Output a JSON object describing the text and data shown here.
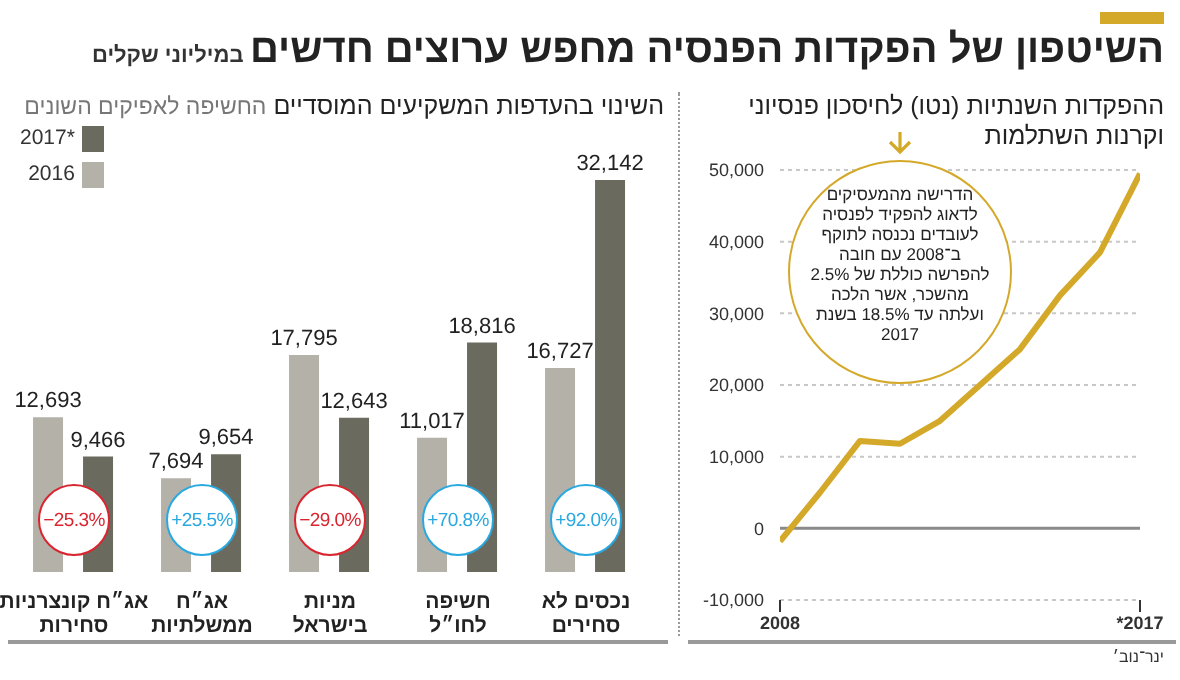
{
  "chart_data": [
    {
      "type": "line",
      "title": "השיטפון של הפקדות הפנסיה מחפש ערוצים חדשים",
      "subtitle": "ההפקדות השנתיות (נטו) לחיסכון פנסיוני וקרנות השתלמות",
      "annotations": [
        "הדרישה מהמעסיקים לדאוג להפקיד לפנסיה לעובדים נכנסה לתוקף ב־2008 עם חובה להפרשה כוללת של 2.5% מהשכר, אשר הלכה ועלתה עד 18.5% בשנת 2017",
        "ינר־נוב׳"
      ],
      "x": [
        2008,
        2009,
        2010,
        2011,
        2012,
        2013,
        2014,
        2015,
        2016,
        2017
      ],
      "series": [
        {
          "color": "#d4a92a",
          "values": [
            -1800,
            5000,
            12200,
            11800,
            15000,
            20000,
            25000,
            32500,
            38500,
            49500
          ]
        }
      ],
      "xlim": [
        2008,
        2017
      ],
      "xticks": [
        {
          "value": 2008,
          "label": "2008"
        },
        {
          "value": 2017,
          "label": "*2017"
        }
      ],
      "ylim": [
        -10000,
        50000
      ],
      "yticks": [
        {
          "value": -10000,
          "label": "-10,000"
        },
        0,
        {
          "value": 10000,
          "label": "10,000"
        },
        {
          "value": 20000,
          "label": "20,000"
        },
        {
          "value": 30000,
          "label": "30,000"
        },
        {
          "value": 40000,
          "label": "40,000"
        },
        {
          "value": 50000,
          "label": "50,000"
        }
      ],
      "grid": "y",
      "ref_lines": [
        {
          "axis": "y",
          "value": 0,
          "color": "#8a8a8a"
        }
      ]
    },
    {
      "type": "bar",
      "title": "השינוי בהעדפות המשקיעים המוסדיים",
      "subtitle": "החשיפה לאפיקים השונים",
      "categories": [
        "אג״ח קונצרניות סחירות",
        "אג״ח ממשלתיות",
        "מניות בישראל",
        "חשיפה לחו״ל",
        "נכסים לא סחירים"
      ],
      "series": [
        {
          "name": "2016",
          "color": "#b3b1a8",
          "values": [
            12693,
            7694,
            17795,
            11017,
            16727
          ],
          "value_labels": [
            "12,693",
            "7,694",
            "17,795",
            "11,017",
            "16,727"
          ]
        },
        {
          "name": "2017*",
          "color": "#6b6a5e",
          "values": [
            9466,
            9654,
            12643,
            18816,
            32142
          ],
          "value_labels": [
            "9,466",
            "9,654",
            "12,643",
            "18,816",
            "32,142"
          ]
        }
      ],
      "annotations": [
        "במיליוני שקלים",
        {
          "text": "−25.3%",
          "x": "אג״ח קונצרניות סחירות"
        },
        {
          "text": "+25.5%",
          "x": "אג״ח ממשלתיות"
        },
        {
          "text": "−29.0%",
          "x": "מניות בישראל"
        },
        {
          "text": "+70.8%",
          "x": "חשיפה לחו״ל"
        },
        {
          "text": "+92.0%",
          "x": "נכסים לא סחירים"
        }
      ],
      "legend": "top left"
    }
  ]
}
